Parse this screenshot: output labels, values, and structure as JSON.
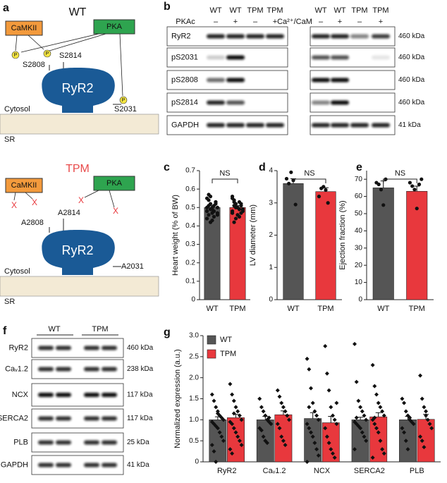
{
  "panel_a": {
    "label": "a",
    "wt": {
      "title": "WT",
      "camkii": "CaMKII",
      "pka": "PKA",
      "phospho": "P",
      "site_1": "S2808",
      "site_2": "S2814",
      "site_3": "S2031",
      "channel": "RyR2",
      "cytosol": "Cytosol",
      "sr": "SR"
    },
    "tpm": {
      "title": "TPM",
      "camkii": "CaMKII",
      "pka": "PKA",
      "block": "X",
      "site_1": "A2808",
      "site_2": "A2814",
      "site_3": "A2031",
      "channel": "RyR2",
      "cytosol": "Cytosol",
      "sr": "SR"
    }
  },
  "panel_b": {
    "label": "b",
    "left": {
      "treatment": "PKAc",
      "columns": [
        "WT",
        "WT",
        "TPM",
        "TPM"
      ],
      "signs": [
        "–",
        "+",
        "–",
        "+"
      ]
    },
    "right": {
      "treatment": "Ca²⁺/CaM",
      "columns": [
        "WT",
        "WT",
        "TPM",
        "TPM"
      ],
      "signs": [
        "–",
        "+",
        "–",
        "+"
      ]
    },
    "rows": [
      "RyR2",
      "pS2031",
      "pS2808",
      "pS2814",
      "GAPDH"
    ],
    "sizes": [
      "460 kDa",
      "460 kDa",
      "460 kDa",
      "460 kDa",
      "41 kDa"
    ]
  },
  "panel_f": {
    "label": "f",
    "groups": [
      "WT",
      "TPM"
    ],
    "rows": [
      "RyR2",
      "Caᵥ1.2",
      "NCX",
      "SERCA2",
      "PLB",
      "GAPDH"
    ],
    "sizes": [
      "460 kDa",
      "238 kDa",
      "117 kDa",
      "117 kDa",
      "25 kDa",
      "41 kDa"
    ]
  },
  "chart_data": [
    {
      "type": "bar",
      "label": "c",
      "y_label": "Heart weight (% of BW)",
      "categories": [
        "WT",
        "TPM"
      ],
      "colors": [
        "#555555",
        "#e8383d"
      ],
      "values": [
        0.5,
        0.5
      ],
      "errors": [
        0.01,
        0.01
      ],
      "annotation": "NS",
      "points": [
        [
          0.55,
          0.57,
          0.52,
          0.5,
          0.48,
          0.53,
          0.46,
          0.44,
          0.51,
          0.49,
          0.47,
          0.45,
          0.52,
          0.5,
          0.48,
          0.54,
          0.42,
          0.49,
          0.51,
          0.53,
          0.47,
          0.5,
          0.46,
          0.56,
          0.43
        ],
        [
          0.56,
          0.54,
          0.52,
          0.5,
          0.49,
          0.51,
          0.48,
          0.47,
          0.53,
          0.5,
          0.46,
          0.45,
          0.52,
          0.49,
          0.48,
          0.51,
          0.44,
          0.5,
          0.53,
          0.47,
          0.49,
          0.55,
          0.42
        ]
      ],
      "ylim": [
        0,
        0.7
      ],
      "yticks": [
        0,
        0.1,
        0.2,
        0.3,
        0.4,
        0.5,
        0.6,
        0.7
      ]
    },
    {
      "type": "bar",
      "label": "d",
      "y_label": "LV diameter (mm)",
      "categories": [
        "WT",
        "TPM"
      ],
      "colors": [
        "#555555",
        "#e8383d"
      ],
      "values": [
        3.6,
        3.35
      ],
      "errors": [
        0.15,
        0.12
      ],
      "annotation": "NS",
      "points": [
        [
          3.75,
          3.6,
          3.95,
          3.7,
          2.95
        ],
        [
          3.2,
          3.45,
          3.5,
          3.4,
          3.0
        ]
      ],
      "ylim": [
        0,
        4
      ],
      "yticks": [
        0,
        1,
        2,
        3,
        4
      ]
    },
    {
      "type": "bar",
      "label": "e",
      "y_label": "Ejection fraction (%)",
      "categories": [
        "WT",
        "TPM"
      ],
      "colors": [
        "#555555",
        "#e8383d"
      ],
      "values": [
        65,
        63
      ],
      "errors": [
        4,
        3
      ],
      "annotation": "NS",
      "points": [
        [
          68,
          67,
          64,
          55,
          70
        ],
        [
          68,
          66,
          64,
          53,
          67,
          70
        ]
      ],
      "ylim": [
        0,
        75
      ],
      "yticks": [
        0,
        10,
        20,
        30,
        40,
        50,
        60,
        70
      ]
    },
    {
      "type": "grouped_bar",
      "label": "g",
      "y_label": "Normalized expression (a.u.)",
      "categories": [
        "RyR2",
        "Caᵥ1.2",
        "NCX",
        "SERCA2",
        "PLB"
      ],
      "series": [
        {
          "name": "WT",
          "color": "#555555",
          "values": [
            1.0,
            1.0,
            1.03,
            1.0,
            1.0
          ],
          "errors": [
            0.07,
            0.08,
            0.14,
            0.06,
            0.08
          ],
          "points": [
            [
              1.6,
              1.45,
              1.3,
              1.2,
              1.1,
              1.05,
              1.0,
              0.95,
              0.9,
              0.85,
              0.8,
              0.7,
              0.6,
              0.5,
              0.4,
              0.25,
              0.0,
              1.15
            ],
            [
              1.5,
              1.3,
              1.2,
              1.1,
              1.0,
              0.95,
              0.9,
              0.8,
              0.75,
              0.6,
              0.5,
              0.45,
              1.05
            ],
            [
              2.45,
              2.2,
              1.75,
              1.4,
              1.2,
              1.1,
              1.0,
              0.9,
              0.8,
              0.7,
              0.6,
              0.45,
              0.3,
              0.15,
              0.0,
              1.3
            ],
            [
              2.8,
              1.9,
              1.45,
              1.3,
              1.2,
              1.1,
              1.0,
              0.95,
              0.9,
              0.85,
              0.8,
              0.7,
              0.6,
              0.5,
              0.3,
              1.05
            ],
            [
              1.5,
              1.4,
              1.2,
              1.1,
              1.0,
              0.95,
              0.9,
              0.8,
              0.7,
              0.5,
              0.3,
              1.05
            ]
          ]
        },
        {
          "name": "TPM",
          "color": "#e8383d",
          "values": [
            1.05,
            1.12,
            0.93,
            1.07,
            1.01
          ],
          "errors": [
            0.08,
            0.09,
            0.15,
            0.1,
            0.12
          ],
          "points": [
            [
              1.85,
              1.6,
              1.45,
              1.3,
              1.2,
              1.1,
              1.0,
              0.95,
              0.9,
              0.8,
              0.7,
              0.6,
              0.5,
              0.4,
              0.3,
              0.2,
              1.15
            ],
            [
              1.7,
              1.55,
              1.4,
              1.3,
              1.2,
              1.1,
              1.0,
              0.9,
              0.8,
              0.6,
              0.5,
              0.4
            ],
            [
              2.75,
              2.1,
              1.7,
              1.3,
              1.1,
              1.0,
              0.9,
              0.8,
              0.6,
              0.45,
              0.3,
              0.2,
              0.1,
              1.4
            ],
            [
              2.3,
              1.8,
              1.6,
              1.4,
              1.3,
              1.2,
              1.1,
              1.0,
              0.9,
              0.8,
              0.7,
              0.5,
              0.3,
              0.2,
              0.1,
              1.05
            ],
            [
              2.05,
              1.5,
              1.3,
              1.2,
              1.0,
              0.9,
              0.8,
              0.6,
              0.5,
              0.35,
              1.1
            ]
          ]
        }
      ],
      "ylim": [
        0,
        3
      ],
      "yticks": [
        0,
        0.5,
        {
          "value": 1,
          "label": "1.0"
        },
        1.5,
        {
          "value": 2,
          "label": "2.0"
        },
        2.5,
        {
          "value": 3,
          "label": "3.0"
        }
      ]
    }
  ]
}
